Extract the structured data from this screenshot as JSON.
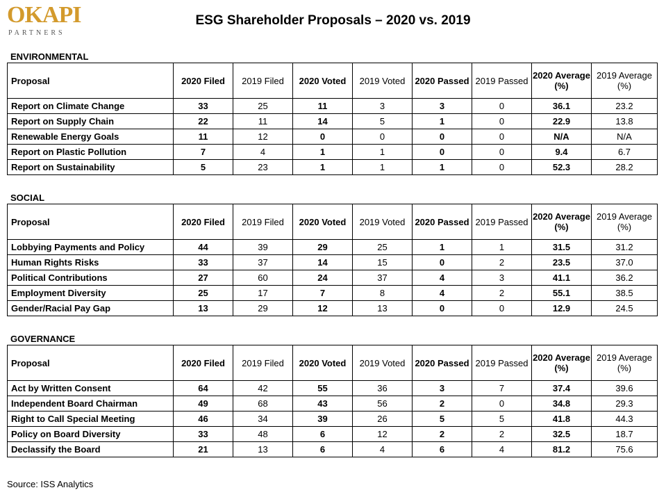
{
  "logo": {
    "word": "OKAPI",
    "sub": "PARTNERS"
  },
  "title": "ESG Shareholder Proposals – 2020 vs. 2019",
  "headers": {
    "proposal": "Proposal",
    "filed_2020": "2020 Filed",
    "filed_2019": "2019 Filed",
    "voted_2020": "2020 Voted",
    "voted_2019": "2019 Voted",
    "passed_2020": "2020 Passed",
    "passed_2019": "2019 Passed",
    "avg_2020": "2020 Average (%)",
    "avg_2019": "2019 Average (%)"
  },
  "sections": [
    {
      "title": "ENVIRONMENTAL",
      "rows": [
        [
          "Report on Climate Change",
          "33",
          "25",
          "11",
          "3",
          "3",
          "0",
          "36.1",
          "23.2"
        ],
        [
          "Report on Supply Chain",
          "22",
          "11",
          "14",
          "5",
          "1",
          "0",
          "22.9",
          "13.8"
        ],
        [
          "Renewable Energy Goals",
          "11",
          "12",
          "0",
          "0",
          "0",
          "0",
          "N/A",
          "N/A"
        ],
        [
          "Report on Plastic Pollution",
          "7",
          "4",
          "1",
          "1",
          "0",
          "0",
          "9.4",
          "6.7"
        ],
        [
          "Report on Sustainability",
          "5",
          "23",
          "1",
          "1",
          "1",
          "0",
          "52.3",
          "28.2"
        ]
      ]
    },
    {
      "title": "SOCIAL",
      "rows": [
        [
          "Lobbying Payments and Policy",
          "44",
          "39",
          "29",
          "25",
          "1",
          "1",
          "31.5",
          "31.2"
        ],
        [
          "Human Rights Risks",
          "33",
          "37",
          "14",
          "15",
          "0",
          "2",
          "23.5",
          "37.0"
        ],
        [
          "Political Contributions",
          "27",
          "60",
          "24",
          "37",
          "4",
          "3",
          "41.1",
          "36.2"
        ],
        [
          "Employment Diversity",
          "25",
          "17",
          "7",
          "8",
          "4",
          "2",
          "55.1",
          "38.5"
        ],
        [
          "Gender/Racial Pay Gap",
          "13",
          "29",
          "12",
          "13",
          "0",
          "0",
          "12.9",
          "24.5"
        ]
      ]
    },
    {
      "title": "GOVERNANCE",
      "rows": [
        [
          "Act by Written Consent",
          "64",
          "42",
          "55",
          "36",
          "3",
          "7",
          "37.4",
          "39.6"
        ],
        [
          "Independent Board Chairman",
          "49",
          "68",
          "43",
          "56",
          "2",
          "0",
          "34.8",
          "29.3"
        ],
        [
          "Right to Call Special Meeting",
          "46",
          "34",
          "39",
          "26",
          "5",
          "5",
          "41.8",
          "44.3"
        ],
        [
          "Policy on Board Diversity",
          "33",
          "48",
          "6",
          "12",
          "2",
          "2",
          "32.5",
          "18.7"
        ],
        [
          "Declassify the Board",
          "21",
          "13",
          "6",
          "4",
          "6",
          "4",
          "81.2",
          "75.6"
        ]
      ]
    }
  ],
  "source": "Source: ISS Analytics"
}
